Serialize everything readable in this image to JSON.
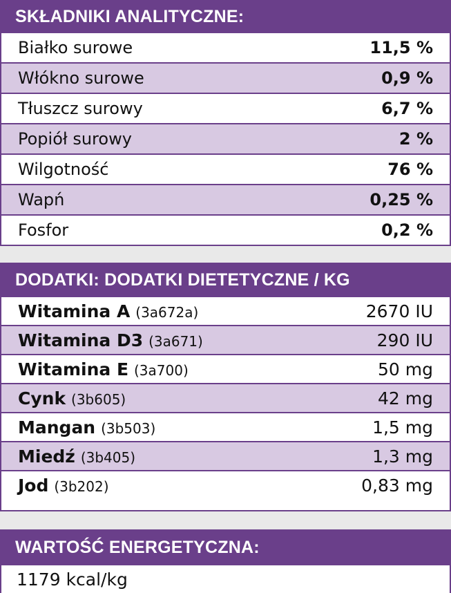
{
  "analytical": {
    "title": "SKŁADNIKI ANALITYCZNE:",
    "rows": [
      {
        "name": "Białko surowe",
        "value": "11,5 %"
      },
      {
        "name": "Włókno surowe",
        "value": "0,9 %"
      },
      {
        "name": "Tłuszcz surowy",
        "value": "6,7 %"
      },
      {
        "name": "Popiół surowy",
        "value": "2 %"
      },
      {
        "name": "Wilgotność",
        "value": "76 %"
      },
      {
        "name": "Wapń",
        "value": "0,25 %"
      },
      {
        "name": "Fosfor",
        "value": "0,2 %"
      }
    ]
  },
  "additives": {
    "title": "DODATKI: DODATKI DIETETYCZNE / KG",
    "rows": [
      {
        "name": "Witamina A",
        "code": "(3a672a)",
        "value": "2670 IU"
      },
      {
        "name": "Witamina D3",
        "code": "(3a671)",
        "value": "290 IU"
      },
      {
        "name": "Witamina E",
        "code": "(3a700)",
        "value": "50 mg"
      },
      {
        "name": "Cynk",
        "code": "(3b605)",
        "value": "42 mg"
      },
      {
        "name": "Mangan",
        "code": "(3b503)",
        "value": "1,5 mg"
      },
      {
        "name": "Miedź",
        "code": "(3b405)",
        "value": "1,3 mg"
      },
      {
        "name": "Jod",
        "code": "(3b202)",
        "value": "0,83 mg"
      }
    ]
  },
  "energy": {
    "title": "WARTOŚĆ ENERGETYCZNA:",
    "value": "1179 kcal/kg"
  }
}
